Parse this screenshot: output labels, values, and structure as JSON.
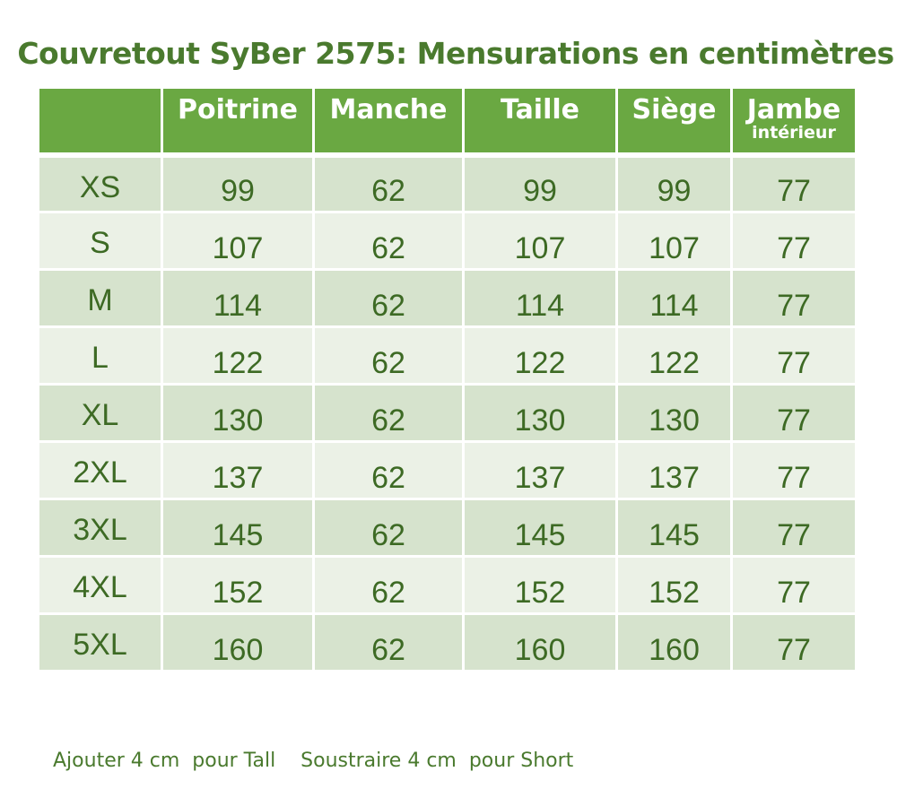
{
  "title": "Couvretout SyBer 2575: Mensurations en centimètres",
  "table": {
    "headers": [
      {
        "label": "",
        "sub": ""
      },
      {
        "label": "Poitrine",
        "sub": ""
      },
      {
        "label": "Manche",
        "sub": ""
      },
      {
        "label": "Taille",
        "sub": ""
      },
      {
        "label": "Siège",
        "sub": ""
      },
      {
        "label": "Jambe",
        "sub": "intérieur"
      }
    ],
    "rows": [
      {
        "size": "XS",
        "values": [
          "99",
          "62",
          "99",
          "99",
          "77"
        ]
      },
      {
        "size": "S",
        "values": [
          "107",
          "62",
          "107",
          "107",
          "77"
        ]
      },
      {
        "size": "M",
        "values": [
          "114",
          "62",
          "114",
          "114",
          "77"
        ]
      },
      {
        "size": "L",
        "values": [
          "122",
          "62",
          "122",
          "122",
          "77"
        ]
      },
      {
        "size": "XL",
        "values": [
          "130",
          "62",
          "130",
          "130",
          "77"
        ]
      },
      {
        "size": "2XL",
        "values": [
          "137",
          "62",
          "137",
          "137",
          "77"
        ]
      },
      {
        "size": "3XL",
        "values": [
          "145",
          "62",
          "145",
          "145",
          "77"
        ]
      },
      {
        "size": "4XL",
        "values": [
          "152",
          "62",
          "152",
          "152",
          "77"
        ]
      },
      {
        "size": "5XL",
        "values": [
          "160",
          "62",
          "160",
          "160",
          "77"
        ]
      }
    ]
  },
  "footnote": "Ajouter 4 cm  pour Tall    Soustraire 4 cm  pour Short",
  "colors": {
    "header_bg": "#6aa842",
    "row_dark": "#d6e3cd",
    "row_light": "#ebf1e6",
    "text_green": "#3d6a24"
  }
}
